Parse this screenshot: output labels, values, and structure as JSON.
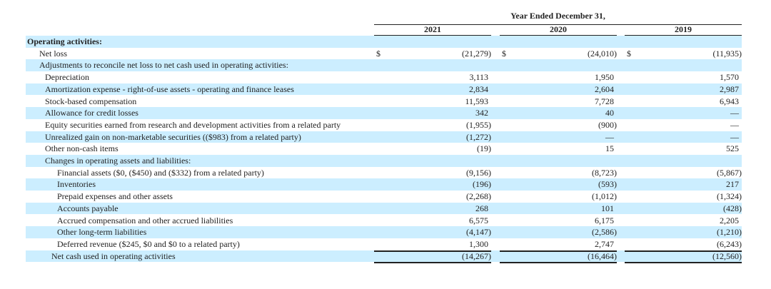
{
  "header": {
    "period_title": "Year Ended December 31,",
    "years": [
      "2021",
      "2020",
      "2019"
    ]
  },
  "colors": {
    "row_shade": "#cceeff"
  },
  "rows": [
    {
      "label": "Operating activities:",
      "bold": true,
      "indent": 0,
      "values": [
        "",
        "",
        ""
      ]
    },
    {
      "label": "Net loss",
      "indent": 1,
      "currency": "$",
      "values": [
        "(21,279)",
        "(24,010)",
        "(11,935)"
      ]
    },
    {
      "label": "Adjustments to reconcile net loss to net cash used in operating activities:",
      "indent": 1,
      "values": [
        "",
        "",
        ""
      ]
    },
    {
      "label": "Depreciation",
      "indent": 2,
      "values": [
        "3,113",
        "1,950",
        "1,570"
      ]
    },
    {
      "label": "Amortization expense - right-of-use assets - operating and finance leases",
      "indent": 2,
      "values": [
        "2,834",
        "2,604",
        "2,987"
      ]
    },
    {
      "label": "Stock-based compensation",
      "indent": 2,
      "values": [
        "11,593",
        "7,728",
        "6,943"
      ]
    },
    {
      "label": "Allowance for credit losses",
      "indent": 2,
      "values": [
        "342",
        "40",
        "—"
      ]
    },
    {
      "label": "Equity securities earned from research and development activities from a related party",
      "indent": 2,
      "values": [
        "(1,955)",
        "(900)",
        "—"
      ]
    },
    {
      "label": "Unrealized gain on non-marketable securities (($983) from a related party)",
      "indent": 2,
      "values": [
        "(1,272)",
        "—",
        "—"
      ]
    },
    {
      "label": "Other non-cash items",
      "indent": 2,
      "values": [
        "(19)",
        "15",
        "525"
      ]
    },
    {
      "label": "Changes in operating assets and liabilities:",
      "indent": 2,
      "values": [
        "",
        "",
        ""
      ]
    },
    {
      "label": "Financial assets ($0, ($450) and ($332) from a related party)",
      "indent": 3,
      "values": [
        "(9,156)",
        "(8,723)",
        "(5,867)"
      ]
    },
    {
      "label": "Inventories",
      "indent": 3,
      "values": [
        "(196)",
        "(593)",
        "217"
      ]
    },
    {
      "label": "Prepaid expenses and other assets",
      "indent": 3,
      "values": [
        "(2,268)",
        "(1,012)",
        "(1,324)"
      ]
    },
    {
      "label": "Accounts payable",
      "indent": 3,
      "values": [
        "268",
        "101",
        "(428)"
      ]
    },
    {
      "label": "Accrued compensation and other accrued liabilities",
      "indent": 3,
      "values": [
        "6,575",
        "6,175",
        "2,205"
      ]
    },
    {
      "label": "Other long-term liabilities",
      "indent": 3,
      "values": [
        "(4,147)",
        "(2,586)",
        "(1,210)"
      ]
    },
    {
      "label": "Deferred revenue ($245, $0 and $0 to a related party)",
      "indent": 3,
      "values": [
        "1,300",
        "2,747",
        "(6,243)"
      ]
    },
    {
      "label": "Net cash used in operating activities",
      "indent": 4,
      "values": [
        "(14,267)",
        "(16,464)",
        "(12,560)"
      ]
    }
  ]
}
